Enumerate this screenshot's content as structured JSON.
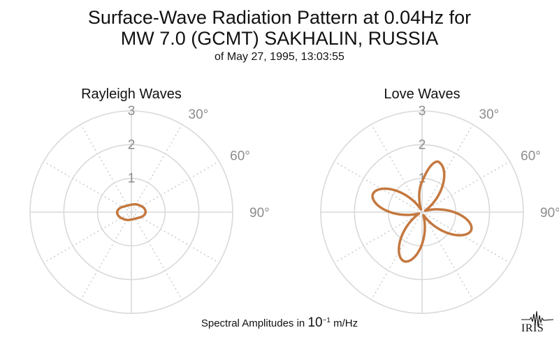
{
  "title": {
    "line1": "Surface-Wave Radiation Pattern at 0.04Hz for",
    "line2": "MW 7.0 (GCMT) SAKHALIN, RUSSIA",
    "line3": "of May 27, 1995, 13:03:55"
  },
  "footer": {
    "prefix": "Spectral Amplitudes in ",
    "base": "10",
    "exponent": "−1",
    "suffix": " m/Hz"
  },
  "logo_text": "IRIS",
  "colors": {
    "pattern": "#c47840",
    "grid": "#d9d9d9",
    "label": "#8c8c8c"
  },
  "chart_data": [
    {
      "type": "polar",
      "title": "Rayleigh Waves",
      "r_ticks": [
        "1",
        "2",
        "3"
      ],
      "r_max": 3,
      "angle_ticks": [
        "30°",
        "60°",
        "90°"
      ],
      "azimuth_deg": [
        0,
        45,
        90,
        135,
        180,
        225,
        270,
        315
      ],
      "amplitude": [
        0.22,
        0.3,
        0.42,
        0.25,
        0.22,
        0.3,
        0.42,
        0.25
      ]
    },
    {
      "type": "polar",
      "title": "Love Waves",
      "r_ticks": [
        "1",
        "2",
        "3"
      ],
      "r_max": 3,
      "angle_ticks": [
        "30°",
        "60°",
        "90°"
      ],
      "azimuth_deg": [
        0,
        20,
        65,
        110,
        155,
        200,
        245,
        290,
        335
      ],
      "amplitude": [
        0.9,
        1.55,
        0.1,
        1.55,
        0.1,
        1.55,
        0.1,
        1.55,
        0.1
      ]
    }
  ]
}
